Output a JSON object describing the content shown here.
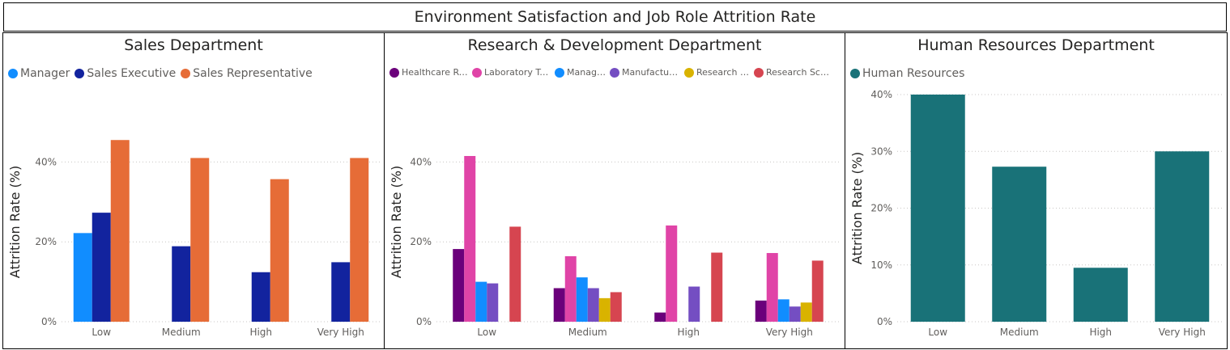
{
  "report_title": "Environment Satisfaction and Job Role Attrition Rate",
  "chart_data": [
    {
      "type": "bar",
      "title": "Sales Department",
      "xlabel": "",
      "ylabel": "Attrition Rate (%)",
      "ylim": [
        0,
        50
      ],
      "yticks": [
        "0%",
        "20%",
        "40%"
      ],
      "ytick_values": [
        0,
        20,
        40
      ],
      "grid": true,
      "legend_position": "top-left",
      "categories": [
        "Low",
        "Medium",
        "High",
        "Very High"
      ],
      "series": [
        {
          "name": "Manager",
          "color": "#118DFF",
          "values": [
            22.2,
            0,
            0,
            0
          ]
        },
        {
          "name": "Sales Executive",
          "color": "#12239E",
          "values": [
            27.3,
            18.9,
            12.4,
            14.9
          ]
        },
        {
          "name": "Sales Representative",
          "color": "#E66C37",
          "values": [
            45.5,
            41.0,
            35.7,
            41.0
          ]
        }
      ]
    },
    {
      "type": "bar",
      "title": "Research & Development Department",
      "xlabel": "",
      "ylabel": "Attrition Rate (%)",
      "ylim": [
        0,
        50
      ],
      "yticks": [
        "0%",
        "20%",
        "40%"
      ],
      "ytick_values": [
        0,
        20,
        40
      ],
      "grid": true,
      "legend_position": "top-left",
      "categories": [
        "Low",
        "Medium",
        "High",
        "Very High"
      ],
      "series": [
        {
          "name": "Healthcare Repr...",
          "color": "#6B007B",
          "values": [
            18.2,
            8.4,
            2.3,
            5.3
          ]
        },
        {
          "name": "Laboratory Tec...",
          "color": "#E044A7",
          "values": [
            41.5,
            16.4,
            24.1,
            17.2
          ]
        },
        {
          "name": "Manager",
          "color": "#118DFF",
          "values": [
            10.0,
            11.1,
            0,
            5.6
          ]
        },
        {
          "name": "Manufacturi...",
          "color": "#744EC2",
          "values": [
            9.6,
            8.4,
            8.8,
            3.8
          ]
        },
        {
          "name": "Research Di...",
          "color": "#D9B300",
          "values": [
            0,
            5.9,
            0,
            4.8
          ]
        },
        {
          "name": "Research Sci...",
          "color": "#D64550",
          "values": [
            23.8,
            7.4,
            17.3,
            15.3
          ]
        }
      ]
    },
    {
      "type": "bar",
      "title": "Human Resources Department",
      "xlabel": "",
      "ylabel": "Attrition Rate (%)",
      "ylim": [
        0,
        40
      ],
      "yticks": [
        "0%",
        "10%",
        "20%",
        "30%",
        "40%"
      ],
      "ytick_values": [
        0,
        10,
        20,
        30,
        40
      ],
      "grid": true,
      "legend_position": "top-left",
      "categories": [
        "Low",
        "Medium",
        "High",
        "Very High"
      ],
      "series": [
        {
          "name": "Human Resources",
          "color": "#197278",
          "values": [
            40.0,
            27.3,
            9.5,
            30.0
          ]
        }
      ]
    }
  ]
}
